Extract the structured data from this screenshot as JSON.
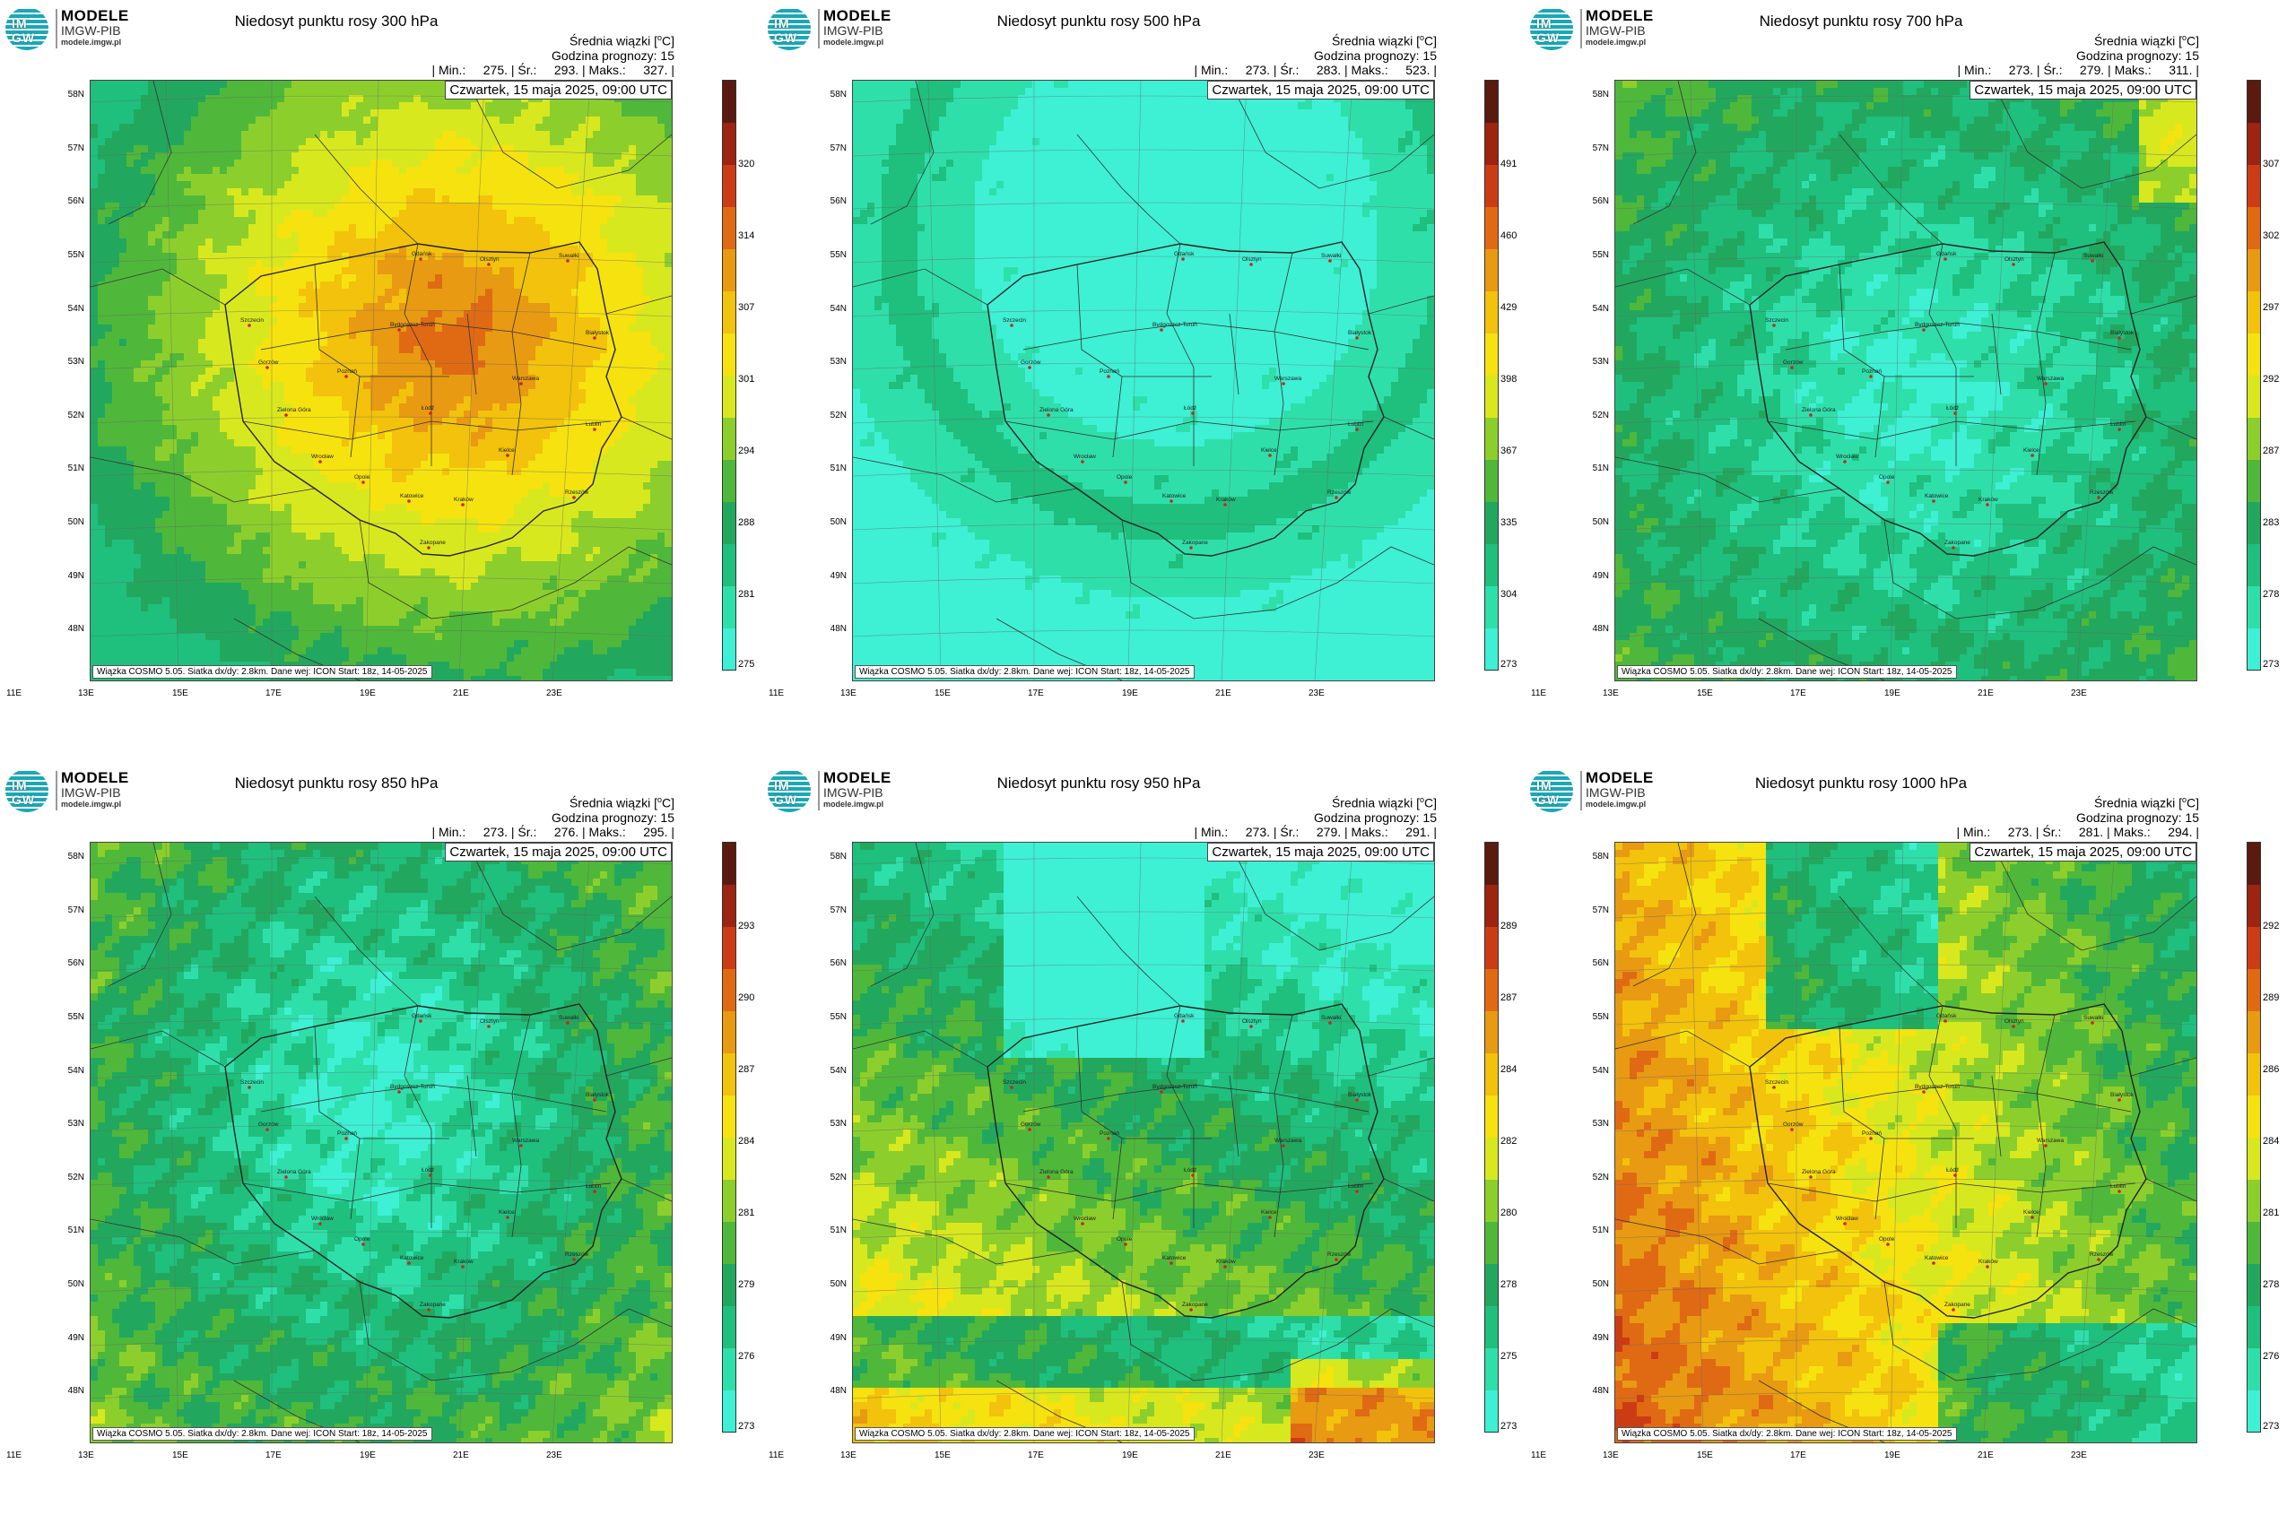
{
  "logo": {
    "badge": "IM GW",
    "name": "MODELE",
    "org": "IMGW-PIB",
    "url": "modele.imgw.pl"
  },
  "common": {
    "subtitle": "Średnia wiązki [",
    "unit_sup": "o",
    "unit_tail": "C]",
    "forecast_hour": "Godzina prognozy: 15",
    "date": "Czwartek, 15 maja 2025, 09:00 UTC",
    "credit": "Wiązka COSMO 5.05. Siatka dx/dy: 2.8km. Dane wej: ICON Start: 18z, 14-05-2025",
    "lat_labels": [
      "58N",
      "57N",
      "56N",
      "55N",
      "54N",
      "53N",
      "52N",
      "51N",
      "50N",
      "49N",
      "48N"
    ],
    "lon_labels": [
      "11E",
      "13E",
      "15E",
      "17E",
      "19E",
      "21E",
      "23E"
    ]
  },
  "panels": [
    {
      "title": "Niedosyt punktu rosy 300 hPa",
      "stats": "| Min.:     275. | Śr.:     293. | Maks.:     327. |",
      "colorbar": [
        "320",
        "314",
        "307",
        "301",
        "294",
        "288",
        "281",
        "275"
      ],
      "field": "high300"
    },
    {
      "title": "Niedosyt punktu rosy 500 hPa",
      "stats": "| Min.:     273. | Śr.:     283. | Maks.:     523. |",
      "colorbar": [
        "491",
        "460",
        "429",
        "398",
        "367",
        "335",
        "304",
        "273"
      ],
      "field": "flat500"
    },
    {
      "title": "Niedosyt punktu rosy 700 hPa",
      "stats": "| Min.:     273. | Śr.:     279. | Maks.:     311. |",
      "colorbar": [
        "307",
        "302",
        "297",
        "292",
        "287",
        "283",
        "278",
        "273"
      ],
      "field": "mid700"
    },
    {
      "title": "Niedosyt punktu rosy 850 hPa",
      "stats": "| Min.:     273. | Śr.:     276. | Maks.:     295. |",
      "colorbar": [
        "293",
        "290",
        "287",
        "284",
        "281",
        "279",
        "276",
        "273"
      ],
      "field": "low850"
    },
    {
      "title": "Niedosyt punktu rosy 950 hPa",
      "stats": "| Min.:     273. | Śr.:     279. | Maks.:     291. |",
      "colorbar": [
        "289",
        "287",
        "284",
        "282",
        "280",
        "278",
        "275",
        "273"
      ],
      "field": "warm950"
    },
    {
      "title": "Niedosyt punktu rosy 1000 hPa",
      "stats": "| Min.:     273. | Śr.:     281. | Maks.:     294. |",
      "colorbar": [
        "292",
        "289",
        "286",
        "284",
        "281",
        "278",
        "276",
        "273"
      ],
      "field": "warm1000"
    }
  ],
  "cities": [
    "Gdańsk",
    "Olsztyn",
    "Suwałki",
    "Szczecin",
    "Bydgoszcz-Toruń",
    "Białystok",
    "Gorzów",
    "Poznań",
    "Warszawa",
    "Zielona Góra",
    "Łódź",
    "Lublin",
    "Wrocław",
    "Kielce",
    "Opole",
    "Rzeszów",
    "Katowice",
    "Kraków",
    "Zakopane"
  ],
  "colors": {
    "scale": [
      "#3ef0d4",
      "#2fdfaa",
      "#1fbf7e",
      "#22a85e",
      "#4fb83a",
      "#8ccf2c",
      "#d8e81e",
      "#f6e20f",
      "#f2c20c",
      "#e89a12",
      "#e06a14",
      "#cc3c14",
      "#9c2410",
      "#5a1a10"
    ]
  }
}
